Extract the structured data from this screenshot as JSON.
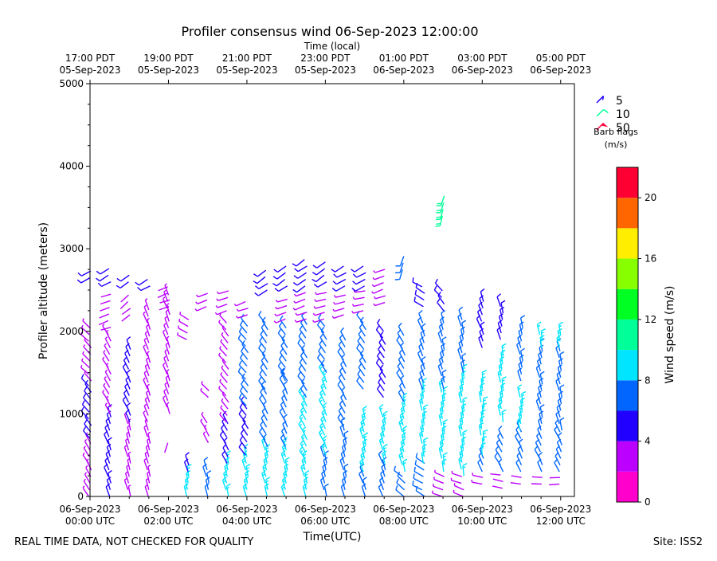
{
  "chart_data": {
    "type": "wind-barb",
    "title": "Profiler consensus wind 06-Sep-2023 12:00:00",
    "top_axis_title": "Time (local)",
    "top_ticks": [
      {
        "hour": 0,
        "line1": "17:00 PDT",
        "line2": "05-Sep-2023"
      },
      {
        "hour": 2,
        "line1": "19:00 PDT",
        "line2": "05-Sep-2023"
      },
      {
        "hour": 4,
        "line1": "21:00 PDT",
        "line2": "05-Sep-2023"
      },
      {
        "hour": 6,
        "line1": "23:00 PDT",
        "line2": "05-Sep-2023"
      },
      {
        "hour": 8,
        "line1": "01:00 PDT",
        "line2": "06-Sep-2023"
      },
      {
        "hour": 10,
        "line1": "03:00 PDT",
        "line2": "06-Sep-2023"
      },
      {
        "hour": 12,
        "line1": "05:00 PDT",
        "line2": "06-Sep-2023"
      }
    ],
    "xlabel": "Time(UTC)",
    "bottom_ticks": [
      {
        "hour": 0,
        "line1": "06-Sep-2023",
        "line2": "00:00 UTC"
      },
      {
        "hour": 2,
        "line1": "06-Sep-2023",
        "line2": "02:00 UTC"
      },
      {
        "hour": 4,
        "line1": "06-Sep-2023",
        "line2": "04:00 UTC"
      },
      {
        "hour": 6,
        "line1": "06-Sep-2023",
        "line2": "06:00 UTC"
      },
      {
        "hour": 8,
        "line1": "06-Sep-2023",
        "line2": "08:00 UTC"
      },
      {
        "hour": 10,
        "line1": "06-Sep-2023",
        "line2": "10:00 UTC"
      },
      {
        "hour": 12,
        "line1": "06-Sep-2023",
        "line2": "12:00 UTC"
      }
    ],
    "xlim_hours": [
      0,
      12.35
    ],
    "ylabel": "Profiler altitude (meters)",
    "ylim": [
      0,
      5000
    ],
    "yticks": [
      {
        "value": 0,
        "label": "0"
      },
      {
        "value": 1000,
        "label": "1000"
      },
      {
        "value": 2000,
        "label": "2000"
      },
      {
        "value": 3000,
        "label": "3000"
      },
      {
        "value": 4000,
        "label": "4000"
      },
      {
        "value": 5000,
        "label": "5000"
      }
    ],
    "barb_legend": {
      "entries": [
        {
          "label": "5",
          "color": "#1f00ff"
        },
        {
          "label": "10",
          "color": "#00ff99"
        },
        {
          "label": "50",
          "color": "#ff0040"
        }
      ],
      "title_line1": "Barb flags",
      "title_line2": "(m/s)"
    },
    "colorbar": {
      "label": "Wind speed (m/s)",
      "range": [
        0,
        22
      ],
      "ticks": [
        {
          "value": 0,
          "label": "0"
        },
        {
          "value": 4,
          "label": "4"
        },
        {
          "value": 8,
          "label": "8"
        },
        {
          "value": 12,
          "label": "12"
        },
        {
          "value": 16,
          "label": "16"
        },
        {
          "value": 20,
          "label": "20"
        }
      ],
      "colors": [
        "#ff00cc",
        "#bb00ff",
        "#2200ff",
        "#0066ff",
        "#00e5ff",
        "#00ff99",
        "#00ff22",
        "#88ff00",
        "#ffee00",
        "#ff6600",
        "#ff0033"
      ]
    },
    "wind_columns": [
      {
        "hour": 0.0,
        "segments": [
          {
            "from": 0,
            "to": 700,
            "speed": 3,
            "dir": 330
          },
          {
            "from": 700,
            "to": 1400,
            "speed": 5,
            "dir": 320
          },
          {
            "from": 1400,
            "to": 2100,
            "speed": 3,
            "dir": 315
          },
          {
            "from": 2650,
            "to": 2800,
            "speed": 5,
            "dir": 240
          }
        ]
      },
      {
        "hour": 0.5,
        "segments": [
          {
            "from": 0,
            "to": 1000,
            "speed": 5,
            "dir": 340
          },
          {
            "from": 1000,
            "to": 2000,
            "speed": 3,
            "dir": 330
          },
          {
            "from": 2050,
            "to": 2500,
            "speed": 2,
            "dir": 250
          },
          {
            "from": 2600,
            "to": 2800,
            "speed": 5,
            "dir": 240
          }
        ]
      },
      {
        "hour": 1.0,
        "segments": [
          {
            "from": 0,
            "to": 900,
            "speed": 3,
            "dir": 345
          },
          {
            "from": 900,
            "to": 1800,
            "speed": 5,
            "dir": 335
          },
          {
            "from": 2200,
            "to": 2450,
            "speed": 2,
            "dir": 230
          },
          {
            "from": 2600,
            "to": 2750,
            "speed": 5,
            "dir": 235
          }
        ]
      },
      {
        "hour": 1.5,
        "segments": [
          {
            "from": 0,
            "to": 800,
            "speed": 3,
            "dir": 345
          },
          {
            "from": 900,
            "to": 2300,
            "speed": 3,
            "dir": 340
          },
          {
            "from": 2550,
            "to": 2700,
            "speed": 5,
            "dir": 240
          }
        ]
      },
      {
        "hour": 2.0,
        "segments": [
          {
            "from": 650,
            "to": 700,
            "speed": 2,
            "dir": 200
          },
          {
            "from": 1000,
            "to": 2450,
            "speed": 3,
            "dir": 340
          },
          {
            "from": 2300,
            "to": 2550,
            "speed": 2,
            "dir": 250
          }
        ]
      },
      {
        "hour": 2.5,
        "segments": [
          {
            "from": 0,
            "to": 250,
            "speed": 8,
            "dir": 350
          },
          {
            "from": 300,
            "to": 450,
            "speed": 5,
            "dir": 340
          },
          {
            "from": 1900,
            "to": 2150,
            "speed": 3,
            "dir": 300
          }
        ]
      },
      {
        "hour": 3.0,
        "segments": [
          {
            "from": 0,
            "to": 350,
            "speed": 6,
            "dir": 345
          },
          {
            "from": 650,
            "to": 900,
            "speed": 3,
            "dir": 330
          },
          {
            "from": 1200,
            "to": 1350,
            "speed": 3,
            "dir": 310
          },
          {
            "from": 2300,
            "to": 2500,
            "speed": 3,
            "dir": 250
          }
        ]
      },
      {
        "hour": 3.5,
        "segments": [
          {
            "from": 0,
            "to": 400,
            "speed": 8,
            "dir": 345
          },
          {
            "from": 400,
            "to": 900,
            "speed": 5,
            "dir": 330
          },
          {
            "from": 900,
            "to": 2150,
            "speed": 3,
            "dir": 320
          },
          {
            "from": 2250,
            "to": 2500,
            "speed": 3,
            "dir": 250
          }
        ]
      },
      {
        "hour": 4.0,
        "segments": [
          {
            "from": 0,
            "to": 500,
            "speed": 8,
            "dir": 345
          },
          {
            "from": 500,
            "to": 1100,
            "speed": 5,
            "dir": 325
          },
          {
            "from": 1100,
            "to": 2100,
            "speed": 6,
            "dir": 320
          },
          {
            "from": 2200,
            "to": 2400,
            "speed": 3,
            "dir": 250
          }
        ]
      },
      {
        "hour": 4.5,
        "segments": [
          {
            "from": 0,
            "to": 600,
            "speed": 8,
            "dir": 345
          },
          {
            "from": 600,
            "to": 1300,
            "speed": 7,
            "dir": 330
          },
          {
            "from": 1300,
            "to": 2100,
            "speed": 6,
            "dir": 325
          },
          {
            "from": 2500,
            "to": 2750,
            "speed": 5,
            "dir": 235
          }
        ]
      },
      {
        "hour": 5.0,
        "segments": [
          {
            "from": 0,
            "to": 600,
            "speed": 8,
            "dir": 345
          },
          {
            "from": 600,
            "to": 1400,
            "speed": 6,
            "dir": 335
          },
          {
            "from": 1400,
            "to": 2100,
            "speed": 7,
            "dir": 325
          },
          {
            "from": 2150,
            "to": 2450,
            "speed": 3,
            "dir": 250
          },
          {
            "from": 2550,
            "to": 2850,
            "speed": 5,
            "dir": 235
          }
        ]
      },
      {
        "hour": 5.5,
        "segments": [
          {
            "from": 0,
            "to": 450,
            "speed": 8,
            "dir": 345
          },
          {
            "from": 450,
            "to": 1200,
            "speed": 9,
            "dir": 330
          },
          {
            "from": 1200,
            "to": 2100,
            "speed": 6,
            "dir": 325
          },
          {
            "from": 2150,
            "to": 2500,
            "speed": 3,
            "dir": 250
          },
          {
            "from": 2550,
            "to": 2900,
            "speed": 5,
            "dir": 235
          }
        ]
      },
      {
        "hour": 6.0,
        "segments": [
          {
            "from": 0,
            "to": 500,
            "speed": 7,
            "dir": 345
          },
          {
            "from": 500,
            "to": 1500,
            "speed": 8,
            "dir": 335
          },
          {
            "from": 1500,
            "to": 2100,
            "speed": 6,
            "dir": 325
          },
          {
            "from": 2150,
            "to": 2500,
            "speed": 3,
            "dir": 255
          },
          {
            "from": 2600,
            "to": 2850,
            "speed": 5,
            "dir": 235
          }
        ]
      },
      {
        "hour": 6.5,
        "segments": [
          {
            "from": 0,
            "to": 850,
            "speed": 7,
            "dir": 345
          },
          {
            "from": 850,
            "to": 1900,
            "speed": 6,
            "dir": 330
          },
          {
            "from": 2200,
            "to": 2500,
            "speed": 3,
            "dir": 255
          },
          {
            "from": 2550,
            "to": 2800,
            "speed": 5,
            "dir": 240
          }
        ]
      },
      {
        "hour": 7.0,
        "segments": [
          {
            "from": 0,
            "to": 300,
            "speed": 6,
            "dir": 340
          },
          {
            "from": 300,
            "to": 1000,
            "speed": 8,
            "dir": 345
          },
          {
            "from": 1300,
            "to": 2100,
            "speed": 6,
            "dir": 325
          },
          {
            "from": 2250,
            "to": 2500,
            "speed": 3,
            "dir": 260
          },
          {
            "from": 2550,
            "to": 2800,
            "speed": 5,
            "dir": 240
          }
        ]
      },
      {
        "hour": 7.5,
        "segments": [
          {
            "from": 0,
            "to": 400,
            "speed": 6,
            "dir": 340
          },
          {
            "from": 400,
            "to": 1000,
            "speed": 8,
            "dir": 345
          },
          {
            "from": 1200,
            "to": 2000,
            "speed": 5,
            "dir": 325
          },
          {
            "from": 2350,
            "to": 2800,
            "speed": 3,
            "dir": 250
          }
        ]
      },
      {
        "hour": 8.0,
        "segments": [
          {
            "from": 0,
            "to": 300,
            "speed": 6,
            "dir": 310
          },
          {
            "from": 300,
            "to": 1100,
            "speed": 8,
            "dir": 345
          },
          {
            "from": 1150,
            "to": 2000,
            "speed": 6,
            "dir": 330
          },
          {
            "from": 2750,
            "to": 2950,
            "speed": 7,
            "dir": 200
          }
        ]
      },
      {
        "hour": 8.5,
        "segments": [
          {
            "from": 0,
            "to": 400,
            "speed": 6,
            "dir": 300
          },
          {
            "from": 400,
            "to": 1300,
            "speed": 8,
            "dir": 350
          },
          {
            "from": 1300,
            "to": 2100,
            "speed": 6,
            "dir": 340
          },
          {
            "from": 2300,
            "to": 2550,
            "speed": 5,
            "dir": 300
          }
        ]
      },
      {
        "hour": 9.0,
        "segments": [
          {
            "from": 0,
            "to": 300,
            "speed": 3,
            "dir": 290
          },
          {
            "from": 300,
            "to": 1300,
            "speed": 9,
            "dir": 350
          },
          {
            "from": 1300,
            "to": 2100,
            "speed": 7,
            "dir": 345
          },
          {
            "from": 2250,
            "to": 2500,
            "speed": 5,
            "dir": 320
          },
          {
            "from": 3400,
            "to": 3700,
            "speed": 10,
            "dir": 195
          }
        ]
      },
      {
        "hour": 9.5,
        "segments": [
          {
            "from": 0,
            "to": 250,
            "speed": 3,
            "dir": 290
          },
          {
            "from": 250,
            "to": 1500,
            "speed": 9,
            "dir": 350
          },
          {
            "from": 1500,
            "to": 2200,
            "speed": 6,
            "dir": 345
          }
        ]
      },
      {
        "hour": 10.0,
        "segments": [
          {
            "from": 150,
            "to": 300,
            "speed": 3,
            "dir": 280
          },
          {
            "from": 300,
            "to": 500,
            "speed": 6,
            "dir": 335
          },
          {
            "from": 500,
            "to": 1400,
            "speed": 9,
            "dir": 355
          },
          {
            "from": 1800,
            "to": 2400,
            "speed": 5,
            "dir": 340
          }
        ]
      },
      {
        "hour": 10.5,
        "segments": [
          {
            "from": 100,
            "to": 300,
            "speed": 2,
            "dir": 280
          },
          {
            "from": 300,
            "to": 700,
            "speed": 7,
            "dir": 330
          },
          {
            "from": 900,
            "to": 1700,
            "speed": 8,
            "dir": 350
          },
          {
            "from": 1900,
            "to": 2300,
            "speed": 5,
            "dir": 345
          }
        ]
      },
      {
        "hour": 11.0,
        "segments": [
          {
            "from": 150,
            "to": 300,
            "speed": 2,
            "dir": 280
          },
          {
            "from": 300,
            "to": 800,
            "speed": 7,
            "dir": 335
          },
          {
            "from": 800,
            "to": 1200,
            "speed": 8,
            "dir": 350
          },
          {
            "from": 1400,
            "to": 2100,
            "speed": 6,
            "dir": 345
          }
        ]
      },
      {
        "hour": 11.5,
        "segments": [
          {
            "from": 150,
            "to": 300,
            "speed": 2,
            "dir": 270
          },
          {
            "from": 300,
            "to": 700,
            "speed": 7,
            "dir": 335
          },
          {
            "from": 800,
            "to": 1800,
            "speed": 6,
            "dir": 345
          },
          {
            "from": 1800,
            "to": 2000,
            "speed": 8,
            "dir": 350
          }
        ]
      },
      {
        "hour": 12.0,
        "segments": [
          {
            "from": 150,
            "to": 300,
            "speed": 2,
            "dir": 270
          },
          {
            "from": 300,
            "to": 800,
            "speed": 7,
            "dir": 335
          },
          {
            "from": 800,
            "to": 1800,
            "speed": 6,
            "dir": 345
          },
          {
            "from": 1800,
            "to": 2000,
            "speed": 8,
            "dir": 350
          }
        ]
      }
    ]
  },
  "footer": {
    "disclaimer": "REAL TIME DATA, NOT CHECKED FOR QUALITY",
    "site": "Site: ISS2"
  }
}
